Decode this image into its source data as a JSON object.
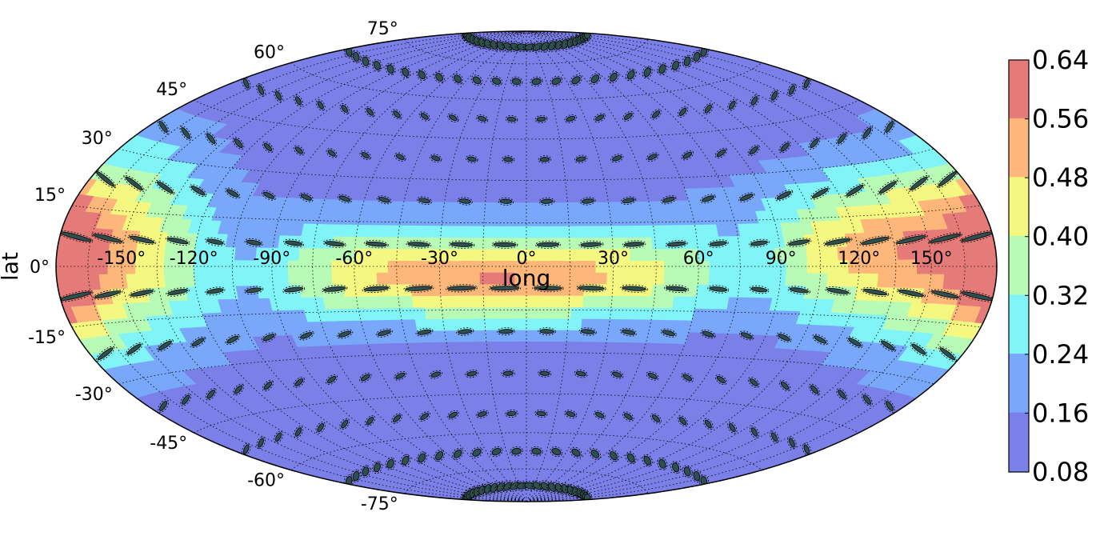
{
  "chart_data": {
    "type": "heatmap",
    "projection": "hammer",
    "xlabel": "long",
    "ylabel": "lat",
    "longitude_ticks": [
      "-150°",
      "-120°",
      "-90°",
      "-60°",
      "-30°",
      "0°",
      "30°",
      "60°",
      "90°",
      "120°",
      "150°"
    ],
    "longitude_tick_values": [
      -150,
      -120,
      -90,
      -60,
      -30,
      0,
      30,
      60,
      90,
      120,
      150
    ],
    "latitude_ticks": [
      "75°",
      "60°",
      "45°",
      "30°",
      "15°",
      "0°",
      "-15°",
      "-30°",
      "-45°",
      "-60°",
      "-75°"
    ],
    "latitude_tick_values": [
      75,
      60,
      45,
      30,
      15,
      0,
      -15,
      -30,
      -45,
      -60,
      -75
    ],
    "xlim": [
      -180,
      180
    ],
    "ylim": [
      -90,
      90
    ],
    "grid": true,
    "colorbar": {
      "position": "right",
      "ticks": [
        "0.08",
        "0.16",
        "0.24",
        "0.32",
        "0.40",
        "0.48",
        "0.56",
        "0.64"
      ],
      "levels": [
        0.08,
        0.16,
        0.24,
        0.32,
        0.4,
        0.48,
        0.56,
        0.64
      ],
      "colors": [
        "#7b80e8",
        "#79a8fa",
        "#80f4f6",
        "#b7fbb6",
        "#f5f880",
        "#fdb77b",
        "#e57b79"
      ]
    },
    "contour_field_peaks": [
      {
        "lon": -15,
        "lat": -2,
        "value": 0.58
      },
      {
        "lon": -50,
        "lat": -4,
        "value": 0.58
      },
      {
        "lon": 125,
        "lat": 8,
        "value": 0.6
      },
      {
        "lon": 180,
        "lat": 0,
        "value": 0.62
      },
      {
        "lon": -180,
        "lat": 0,
        "value": 0.55
      },
      {
        "lon": 15,
        "lat": -5,
        "value": 0.52
      }
    ],
    "ellipses": "error ellipses drawn at every grid node (15° spacing)"
  }
}
